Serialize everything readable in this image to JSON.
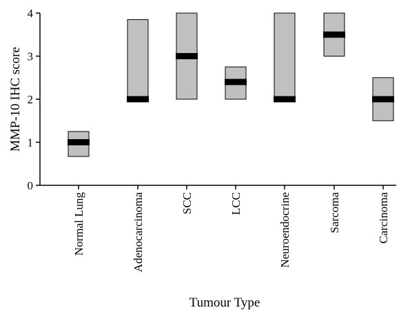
{
  "chart_data": {
    "type": "box",
    "title": "",
    "xlabel": "Tumour Type",
    "ylabel": "MMP-10 IHC score",
    "ylim": [
      0,
      4
    ],
    "yticks": [
      "0",
      "1",
      "2",
      "3",
      "4"
    ],
    "grid": false,
    "legend": "none",
    "box_fill": "#c0c0c0",
    "median_color": "#000000",
    "categories": [
      "Normal Lung",
      "Adenocarcinoma",
      "SCC",
      "LCC",
      "Neuroendocrine",
      "Sarcoma",
      "Carcinoma"
    ],
    "boxes": [
      {
        "category": "Normal Lung",
        "low": 0.67,
        "median": 1.0,
        "high": 1.25
      },
      {
        "category": "Adenocarcinoma",
        "low": 2.0,
        "median": 2.0,
        "high": 3.85
      },
      {
        "category": "SCC",
        "low": 2.0,
        "median": 3.0,
        "high": 4.0
      },
      {
        "category": "LCC",
        "low": 2.0,
        "median": 2.4,
        "high": 2.75
      },
      {
        "category": "Neuroendocrine",
        "low": 2.0,
        "median": 2.0,
        "high": 4.0
      },
      {
        "category": "Sarcoma",
        "low": 3.0,
        "median": 3.5,
        "high": 4.0
      },
      {
        "category": "Carcinoma",
        "low": 1.5,
        "median": 2.0,
        "high": 2.5
      }
    ]
  }
}
